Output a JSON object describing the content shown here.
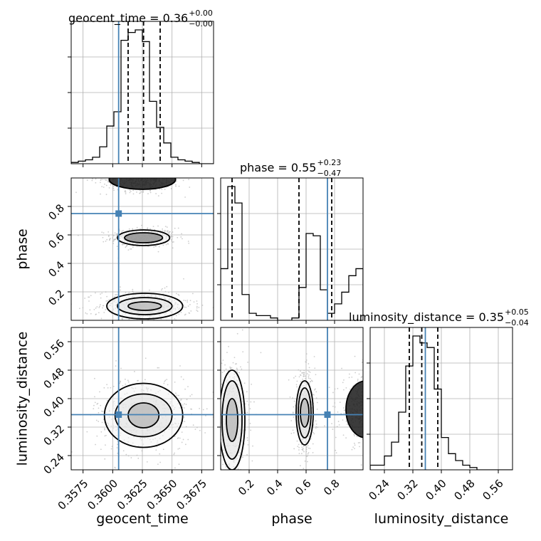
{
  "colors": {
    "truth": "#4682b4",
    "hist": "#000000",
    "grid": "#b0b0b0",
    "scatter": "#b8b8b8"
  },
  "chart_data": {
    "type": "corner",
    "parameters": [
      "geocent_time",
      "phase",
      "luminosity_distance"
    ],
    "truths": {
      "geocent_time": 0.3605,
      "phase": 0.75,
      "luminosity_distance": 0.355
    },
    "titles": [
      {
        "param": "geocent_time",
        "label": "geocent_time = 0.36",
        "plus": "+0.00",
        "minus": "−0.00"
      },
      {
        "param": "phase",
        "label": "phase = 0.55",
        "plus": "+0.23",
        "minus": "−0.47"
      },
      {
        "param": "luminosity_distance",
        "label": "luminosity_distance = 0.35",
        "plus": "+0.05",
        "minus": "−0.04"
      }
    ],
    "axes": {
      "geocent_time": {
        "range": [
          0.3565,
          0.3685
        ],
        "ticks": [
          0.3575,
          0.36,
          0.3625,
          0.365,
          0.3675
        ],
        "tick_labels": [
          "0.3575",
          "0.3600",
          "0.3625",
          "0.3650",
          "0.3675"
        ],
        "label": "geocent_time"
      },
      "phase": {
        "range": [
          0.0,
          1.0
        ],
        "ticks": [
          0.2,
          0.4,
          0.6,
          0.8
        ],
        "tick_labels": [
          "0.2",
          "0.4",
          "0.6",
          "0.8"
        ],
        "label": "phase"
      },
      "luminosity_distance": {
        "range": [
          0.2,
          0.6
        ],
        "ticks": [
          0.24,
          0.32,
          0.4,
          0.48,
          0.56
        ],
        "tick_labels": [
          "0.24",
          "0.32",
          "0.40",
          "0.48",
          "0.56"
        ],
        "label": "luminosity_distance"
      }
    },
    "marginals": [
      {
        "param": "geocent_time",
        "quantiles": [
          0.3613,
          0.3626,
          0.364
        ],
        "bins_start": 0.3565,
        "bin_width": 0.0006,
        "counts": [
          1,
          2,
          3,
          5,
          13,
          29,
          40,
          95,
          101,
          103,
          94,
          48,
          28,
          16,
          5,
          3,
          2,
          1,
          0,
          0
        ]
      },
      {
        "param": "phase",
        "quantiles": [
          0.08,
          0.55,
          0.78
        ],
        "bins_start": 0.0,
        "bin_width": 0.05,
        "counts": [
          22,
          57,
          50,
          11,
          3,
          2,
          2,
          1,
          0,
          0,
          1,
          14,
          37,
          36,
          13,
          3,
          7,
          12,
          19,
          22
        ]
      },
      {
        "param": "luminosity_distance",
        "quantiles": [
          0.31,
          0.345,
          0.39
        ],
        "bins_start": 0.2,
        "bin_width": 0.02,
        "counts": [
          2,
          2,
          6,
          12,
          25,
          45,
          58,
          55,
          53,
          35,
          14,
          7,
          4,
          2,
          1,
          0,
          0,
          0,
          0,
          0
        ]
      }
    ],
    "clusters": [
      {
        "pair": [
          "geocent_time",
          "phase"
        ],
        "center": [
          0.3626,
          0.58
        ],
        "levels": [
          [
            0.0016,
            0.035
          ],
          [
            0.0022,
            0.055
          ]
        ]
      },
      {
        "pair": [
          "geocent_time",
          "phase"
        ],
        "center": [
          0.3627,
          0.1
        ],
        "levels": [
          [
            0.0014,
            0.03
          ],
          [
            0.0023,
            0.06
          ],
          [
            0.0032,
            0.09
          ]
        ]
      },
      {
        "pair": [
          "geocent_time",
          "phase"
        ],
        "center": [
          0.3625,
          0.99
        ],
        "levels": [
          [
            0.0028,
            0.07
          ]
        ]
      },
      {
        "pair": [
          "geocent_time",
          "luminosity_distance"
        ],
        "center": [
          0.3626,
          0.353
        ],
        "levels": [
          [
            0.0013,
            0.035
          ],
          [
            0.0024,
            0.06
          ],
          [
            0.0033,
            0.09
          ]
        ]
      },
      {
        "pair": [
          "phase",
          "luminosity_distance"
        ],
        "center": [
          0.08,
          0.34
        ],
        "levels": [
          [
            0.04,
            0.06
          ],
          [
            0.07,
            0.11
          ],
          [
            0.09,
            0.14
          ]
        ]
      },
      {
        "pair": [
          "phase",
          "luminosity_distance"
        ],
        "center": [
          0.59,
          0.36
        ],
        "levels": [
          [
            0.03,
            0.04
          ],
          [
            0.045,
            0.07
          ],
          [
            0.06,
            0.09
          ]
        ]
      },
      {
        "pair": [
          "phase",
          "luminosity_distance"
        ],
        "center": [
          1.02,
          0.37
        ],
        "levels": [
          [
            0.14,
            0.08
          ]
        ]
      }
    ]
  }
}
